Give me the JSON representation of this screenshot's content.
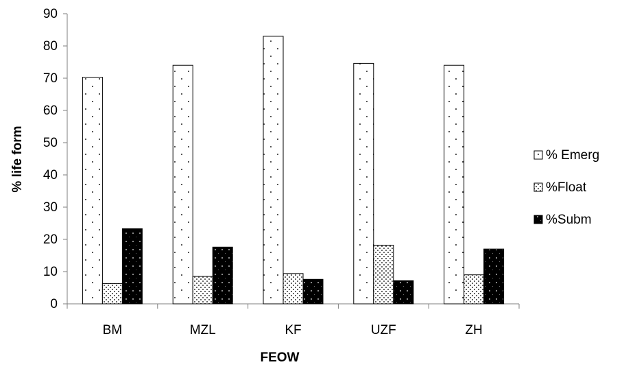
{
  "chart_data": {
    "type": "bar",
    "title": "",
    "xlabel": "FEOW",
    "ylabel": "% life form",
    "categories": [
      "BM",
      "MZL",
      "KF",
      "UZF",
      "ZH"
    ],
    "ylim": [
      0,
      90
    ],
    "yticks": [
      0,
      10,
      20,
      30,
      40,
      50,
      60,
      70,
      80,
      90
    ],
    "grid": false,
    "legend_position": "right",
    "series": [
      {
        "name": "% Emerg",
        "pattern": "sparse-dots",
        "values": [
          70.3,
          74.0,
          83.0,
          74.6,
          74.0
        ]
      },
      {
        "name": "%Float",
        "pattern": "dense-dots",
        "values": [
          6.3,
          8.5,
          9.4,
          18.2,
          9.0
        ]
      },
      {
        "name": "%Subm",
        "pattern": "black-dotted",
        "values": [
          23.3,
          17.6,
          7.6,
          7.2,
          17.0
        ]
      }
    ]
  }
}
